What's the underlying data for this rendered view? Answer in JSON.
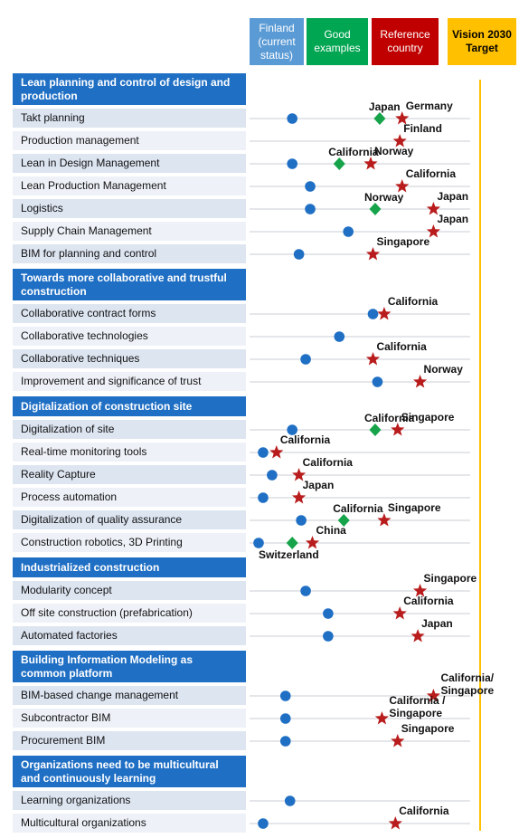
{
  "legend": {
    "finland": {
      "label": "Finland (current status)",
      "color": "#5b9bd5"
    },
    "good": {
      "label": "Good examples",
      "color": "#00a651"
    },
    "reference": {
      "label": "Reference country",
      "color": "#c00000"
    },
    "vision": {
      "label": "Vision 2030 Target",
      "color": "#ffc000"
    }
  },
  "colors": {
    "section_bg": "#1f6fc4",
    "row_bg": "#dde5f1",
    "dot": "#1f6fc4",
    "diamond": "#16a34a",
    "star": "#b91c1c",
    "vision_line": "#ffc000",
    "track": "#c9ced6"
  },
  "chart_data": {
    "type": "scatter",
    "sections": [
      {
        "title": "Lean planning and control of design and production",
        "items": [
          {
            "label": "Takt planning",
            "finland": 1.5,
            "good": 5.4,
            "ref": 6.4,
            "labels": [
              {
                "text": "Japan",
                "near": "good"
              },
              {
                "text": "Germany",
                "near": "ref"
              }
            ]
          },
          {
            "label": "Production management",
            "finland": null,
            "good": null,
            "ref": 6.3,
            "labels": [
              {
                "text": "Finland",
                "near": "ref"
              }
            ]
          },
          {
            "label": "Lean in Design Management",
            "finland": 1.5,
            "good": 3.6,
            "ref": 5.0,
            "labels": [
              {
                "text": "California",
                "near": "good"
              },
              {
                "text": "Norway",
                "near": "ref"
              }
            ]
          },
          {
            "label": "Lean Production Management",
            "finland": 2.3,
            "good": null,
            "ref": 6.4,
            "labels": [
              {
                "text": "California",
                "near": "ref"
              }
            ]
          },
          {
            "label": "Logistics",
            "finland": 2.3,
            "good": 5.2,
            "ref": 7.8,
            "labels": [
              {
                "text": "Norway",
                "near": "good"
              },
              {
                "text": "Japan",
                "near": "ref"
              }
            ]
          },
          {
            "label": "Supply Chain Management",
            "finland": 4.0,
            "good": null,
            "ref": 7.8,
            "labels": [
              {
                "text": "Japan",
                "near": "ref"
              }
            ]
          },
          {
            "label": "BIM for planning and control",
            "finland": 1.8,
            "good": null,
            "ref": 5.1,
            "labels": [
              {
                "text": "Singapore",
                "near": "ref"
              }
            ]
          }
        ]
      },
      {
        "title": "Towards more collaborative and trustful construction",
        "items": [
          {
            "label": "Collaborative contract forms",
            "finland": 5.1,
            "good": null,
            "ref": 5.6,
            "labels": [
              {
                "text": "California",
                "near": "ref"
              }
            ]
          },
          {
            "label": "Collaborative technologies",
            "finland": 3.6,
            "good": null,
            "ref": null,
            "labels": []
          },
          {
            "label": "Collaborative techniques",
            "finland": 2.1,
            "good": null,
            "ref": 5.1,
            "labels": [
              {
                "text": "California",
                "near": "ref"
              }
            ]
          },
          {
            "label": "Improvement and significance of trust",
            "finland": 5.3,
            "good": null,
            "ref": 7.2,
            "labels": [
              {
                "text": "Norway",
                "near": "ref"
              }
            ]
          }
        ]
      },
      {
        "title": "Digitalization of construction site",
        "items": [
          {
            "label": "Digitalization of site",
            "finland": 1.5,
            "good": 5.2,
            "ref": 6.2,
            "labels": [
              {
                "text": "California",
                "near": "good"
              },
              {
                "text": "Singapore",
                "near": "ref"
              }
            ]
          },
          {
            "label": "Real-time monitoring tools",
            "finland": 0.2,
            "good": null,
            "ref": 0.8,
            "labels": [
              {
                "text": "California",
                "near": "ref"
              }
            ]
          },
          {
            "label": "Reality Capture",
            "finland": 0.6,
            "good": null,
            "ref": 1.8,
            "labels": [
              {
                "text": "California",
                "near": "ref"
              }
            ]
          },
          {
            "label": "Process automation",
            "finland": 0.2,
            "good": null,
            "ref": 1.8,
            "labels": [
              {
                "text": "Japan",
                "near": "ref"
              }
            ]
          },
          {
            "label": "Digitalization of quality assurance",
            "finland": 1.9,
            "good": 3.8,
            "ref": 5.6,
            "labels": [
              {
                "text": "California",
                "near": "good"
              },
              {
                "text": "Singapore",
                "near": "ref"
              }
            ]
          },
          {
            "label": "Construction robotics, 3D Printing",
            "finland": 0.0,
            "good": 1.5,
            "ref": 2.4,
            "labels": [
              {
                "text": "China",
                "near": "ref"
              },
              {
                "text": "Switzerland",
                "near": "finland"
              }
            ]
          }
        ]
      },
      {
        "title": "Industrialized construction",
        "items": [
          {
            "label": "Modularity concept",
            "finland": 2.1,
            "good": null,
            "ref": 7.2,
            "labels": [
              {
                "text": "Singapore",
                "near": "ref"
              }
            ]
          },
          {
            "label": "Off site construction (prefabrication)",
            "finland": 3.1,
            "good": null,
            "ref": 6.3,
            "labels": [
              {
                "text": "California",
                "near": "ref"
              }
            ]
          },
          {
            "label": "Automated factories",
            "finland": 3.1,
            "good": null,
            "ref": 7.1,
            "labels": [
              {
                "text": "Japan",
                "near": "ref"
              }
            ]
          }
        ]
      },
      {
        "title": "Building Information Modeling as common platform",
        "items": [
          {
            "label": "BIM-based change management",
            "finland": 1.2,
            "good": null,
            "ref": 7.8,
            "labels": [
              {
                "text": "California/",
                "near": "ref"
              },
              {
                "text": "Singapore",
                "near": "ref"
              }
            ]
          },
          {
            "label": "Subcontractor BIM",
            "finland": 1.2,
            "good": null,
            "ref": 5.5,
            "labels": [
              {
                "text": "California /",
                "near": "ref"
              },
              {
                "text": "Singapore",
                "near": "ref"
              }
            ]
          },
          {
            "label": "Procurement BIM",
            "finland": 1.2,
            "good": null,
            "ref": 6.2,
            "labels": [
              {
                "text": "Singapore",
                "near": "ref"
              }
            ]
          }
        ]
      },
      {
        "title": "Organizations need to be multicultural and continuously learning",
        "items": [
          {
            "label": "Learning organizations",
            "finland": 1.4,
            "good": null,
            "ref": null,
            "labels": []
          },
          {
            "label": "Multicultural organizations",
            "finland": 0.2,
            "good": null,
            "ref": 6.1,
            "labels": [
              {
                "text": "California",
                "near": "ref"
              }
            ]
          }
        ]
      }
    ]
  }
}
